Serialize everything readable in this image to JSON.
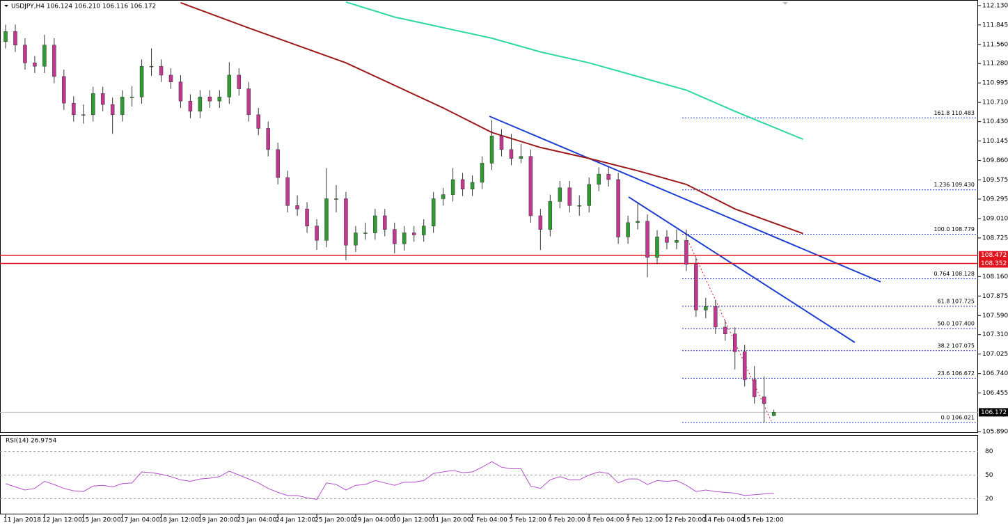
{
  "chart_data": {
    "type": "candlestick",
    "title": "USDJPY,H4  106.124 106.210 106.116 106.172",
    "up_color": "#2f9a2f",
    "down_color": "#c2378f",
    "wick_color": "#333333",
    "ylim": [
      105.87,
      112.21
    ],
    "yticks": [
      {
        "value": 112.13,
        "label": "112.130"
      },
      {
        "value": 111.845,
        "label": "111.845"
      },
      {
        "value": 111.56,
        "label": "111.560"
      },
      {
        "value": 111.28,
        "label": "111.280"
      },
      {
        "value": 110.995,
        "label": "110.995"
      },
      {
        "value": 110.71,
        "label": "110.710"
      },
      {
        "value": 110.43,
        "label": "110.430"
      },
      {
        "value": 110.145,
        "label": "110.145"
      },
      {
        "value": 109.86,
        "label": "109.860"
      },
      {
        "value": 109.575,
        "label": "109.575"
      },
      {
        "value": 109.295,
        "label": "109.295"
      },
      {
        "value": 109.01,
        "label": "109.010"
      },
      {
        "value": 108.725,
        "label": "108.725"
      },
      {
        "value": 108.16,
        "label": "108.160"
      },
      {
        "value": 107.875,
        "label": "107.875"
      },
      {
        "value": 107.59,
        "label": "107.590"
      },
      {
        "value": 107.31,
        "label": "107.310"
      },
      {
        "value": 107.025,
        "label": "107.025"
      },
      {
        "value": 106.74,
        "label": "106.740"
      },
      {
        "value": 106.455,
        "label": "106.455"
      },
      {
        "value": 105.89,
        "label": "105.890"
      }
    ],
    "x_labels": [
      "11 Jan 2018",
      "12 Jan 12:00",
      "15 Jan 20:00",
      "17 Jan 04:00",
      "18 Jan 12:00",
      "19 Jan 20:00",
      "23 Jan 04:00",
      "24 Jan 12:00",
      "25 Jan 20:00",
      "29 Jan 04:00",
      "30 Jan 12:00",
      "31 Jan 20:00",
      "2 Feb 04:00",
      "5 Feb 12:00",
      "6 Feb 20:00",
      "8 Feb 04:00",
      "9 Feb 12:00",
      "12 Feb 20:00",
      "14 Feb 04:00",
      "15 Feb 12:00"
    ],
    "ohlc": [
      [
        111.6,
        111.85,
        111.5,
        111.75
      ],
      [
        111.75,
        111.85,
        111.45,
        111.55
      ],
      [
        111.55,
        111.65,
        111.19,
        111.29
      ],
      [
        111.29,
        111.39,
        111.14,
        111.24
      ],
      [
        111.24,
        111.7,
        111.14,
        111.55
      ],
      [
        111.55,
        111.65,
        110.99,
        111.09
      ],
      [
        111.09,
        111.19,
        110.6,
        110.7
      ],
      [
        110.7,
        110.8,
        110.43,
        110.53
      ],
      [
        110.53,
        110.68,
        110.4,
        110.53
      ],
      [
        110.53,
        110.94,
        110.43,
        110.84
      ],
      [
        110.84,
        110.94,
        110.58,
        110.68
      ],
      [
        110.68,
        110.78,
        110.25,
        110.53
      ],
      [
        110.53,
        110.89,
        110.43,
        110.79
      ],
      [
        110.79,
        110.95,
        110.65,
        110.79
      ],
      [
        110.79,
        111.34,
        110.69,
        111.24
      ],
      [
        111.24,
        111.5,
        111.1,
        111.24
      ],
      [
        111.24,
        111.34,
        111.01,
        111.11
      ],
      [
        111.11,
        111.21,
        110.91,
        111.01
      ],
      [
        111.01,
        111.11,
        110.63,
        110.73
      ],
      [
        110.73,
        110.83,
        110.48,
        110.58
      ],
      [
        110.58,
        110.89,
        110.48,
        110.79
      ],
      [
        110.79,
        110.89,
        110.63,
        110.73
      ],
      [
        110.73,
        110.89,
        110.63,
        110.79
      ],
      [
        110.79,
        111.3,
        110.69,
        111.11
      ],
      [
        111.11,
        111.21,
        110.81,
        110.91
      ],
      [
        110.91,
        111.01,
        110.43,
        110.53
      ],
      [
        110.53,
        110.63,
        110.23,
        110.33
      ],
      [
        110.33,
        110.43,
        109.92,
        110.02
      ],
      [
        110.02,
        110.12,
        109.51,
        109.61
      ],
      [
        109.61,
        109.71,
        109.1,
        109.2
      ],
      [
        109.2,
        109.35,
        109.05,
        109.15
      ],
      [
        109.15,
        109.25,
        108.8,
        108.9
      ],
      [
        108.9,
        109.0,
        108.55,
        108.69
      ],
      [
        108.69,
        109.75,
        108.59,
        109.3
      ],
      [
        109.3,
        109.5,
        109.1,
        109.3
      ],
      [
        109.3,
        109.4,
        108.4,
        108.62
      ],
      [
        108.62,
        108.9,
        108.52,
        108.8
      ],
      [
        108.8,
        108.95,
        108.7,
        108.8
      ],
      [
        108.8,
        109.15,
        108.7,
        109.05
      ],
      [
        109.05,
        109.15,
        108.75,
        108.85
      ],
      [
        108.85,
        108.95,
        108.5,
        108.64
      ],
      [
        108.64,
        108.9,
        108.54,
        108.8
      ],
      [
        108.8,
        108.9,
        108.67,
        108.77
      ],
      [
        108.77,
        109.0,
        108.67,
        108.9
      ],
      [
        108.9,
        109.4,
        108.8,
        109.3
      ],
      [
        109.3,
        109.46,
        109.2,
        109.36
      ],
      [
        109.36,
        109.75,
        109.26,
        109.58
      ],
      [
        109.58,
        109.68,
        109.34,
        109.44
      ],
      [
        109.44,
        109.64,
        109.34,
        109.54
      ],
      [
        109.54,
        109.92,
        109.44,
        109.82
      ],
      [
        109.82,
        110.45,
        109.72,
        110.22
      ],
      [
        110.22,
        110.32,
        109.92,
        110.02
      ],
      [
        110.02,
        110.25,
        109.79,
        109.89
      ],
      [
        109.89,
        110.1,
        109.82,
        109.92
      ],
      [
        109.92,
        110.02,
        108.95,
        109.05
      ],
      [
        109.05,
        109.15,
        108.55,
        108.85
      ],
      [
        108.85,
        109.36,
        108.75,
        109.26
      ],
      [
        109.26,
        109.56,
        109.16,
        109.46
      ],
      [
        109.46,
        109.56,
        109.1,
        109.2
      ],
      [
        109.2,
        109.35,
        109.05,
        109.2
      ],
      [
        109.2,
        109.61,
        109.1,
        109.51
      ],
      [
        109.51,
        109.76,
        109.41,
        109.66
      ],
      [
        109.66,
        109.76,
        109.48,
        109.58
      ],
      [
        109.58,
        109.68,
        108.64,
        108.74
      ],
      [
        108.74,
        109.05,
        108.64,
        108.95
      ],
      [
        108.95,
        109.25,
        108.85,
        108.97
      ],
      [
        108.97,
        109.07,
        108.15,
        108.44
      ],
      [
        108.44,
        108.84,
        108.34,
        108.74
      ],
      [
        108.74,
        108.84,
        108.56,
        108.66
      ],
      [
        108.66,
        108.85,
        108.56,
        108.69
      ],
      [
        108.69,
        108.85,
        108.24,
        108.34
      ],
      [
        108.34,
        108.44,
        107.57,
        107.67
      ],
      [
        107.67,
        107.85,
        107.55,
        107.72
      ],
      [
        107.72,
        107.82,
        107.32,
        107.42
      ],
      [
        107.42,
        107.52,
        107.22,
        107.32
      ],
      [
        107.32,
        107.42,
        106.8,
        107.06
      ],
      [
        107.06,
        107.16,
        106.55,
        106.65
      ],
      [
        106.65,
        106.85,
        106.3,
        106.4
      ],
      [
        106.4,
        106.7,
        106.02,
        106.3
      ],
      [
        106.124,
        106.21,
        106.116,
        106.172
      ]
    ],
    "moving_averages": [
      {
        "color": "#9b1b1b",
        "x": [
          18,
          25,
          35,
          45,
          50,
          55,
          60,
          65,
          70,
          75,
          82
        ],
        "values": [
          112.17,
          111.8,
          111.29,
          110.63,
          110.27,
          110.05,
          109.89,
          109.71,
          109.51,
          109.15,
          108.79
        ]
      },
      {
        "color": "#2ed8a0",
        "x": [
          35,
          40,
          50,
          55,
          60,
          65,
          70,
          75,
          82
        ],
        "values": [
          112.18,
          111.96,
          111.65,
          111.45,
          111.29,
          111.09,
          110.89,
          110.58,
          110.17
        ]
      }
    ],
    "support_lines": [
      {
        "value": 108.472,
        "label": "108.472"
      },
      {
        "value": 108.352,
        "label": "108.352"
      }
    ],
    "support_color": "#e0141e",
    "current_price": {
      "value": 106.172,
      "label": "106.172"
    },
    "fib_levels": [
      {
        "value": 110.483,
        "label": "161.8 110.483"
      },
      {
        "value": 109.43,
        "label": "1.236 109.430"
      },
      {
        "value": 108.779,
        "label": "100.0 108.779"
      },
      {
        "value": 108.128,
        "label": "0.764 108.128"
      },
      {
        "value": 107.725,
        "label": "61.8 107.725"
      },
      {
        "value": 107.4,
        "label": "50.0 107.400"
      },
      {
        "value": 107.075,
        "label": "38.2 107.075"
      },
      {
        "value": 106.672,
        "label": "23.6 106.672"
      },
      {
        "value": 106.021,
        "label": "0.0 106.021"
      }
    ],
    "fib_color": "#2233bb",
    "rsi": {
      "label": "RSI(14) 26.9754",
      "color": "#b04fc8",
      "ylim": [
        0,
        100
      ],
      "yticks": [
        20,
        50,
        80
      ],
      "values": [
        39,
        35,
        31,
        33,
        42,
        38,
        33,
        30,
        29,
        36,
        37,
        35,
        39,
        40,
        54,
        53,
        51,
        48,
        44,
        42,
        45,
        46,
        48,
        55,
        50,
        45,
        40,
        33,
        28,
        24,
        24,
        21,
        19,
        40,
        38,
        31,
        37,
        38,
        43,
        40,
        37,
        41,
        41,
        43,
        52,
        54,
        56,
        53,
        54,
        60,
        67,
        60,
        58,
        58,
        36,
        33,
        44,
        48,
        44,
        44,
        50,
        54,
        52,
        40,
        45,
        45,
        38,
        43,
        42,
        43,
        37,
        29,
        31,
        29,
        28,
        27,
        24,
        25,
        26,
        26.9754
      ]
    }
  }
}
